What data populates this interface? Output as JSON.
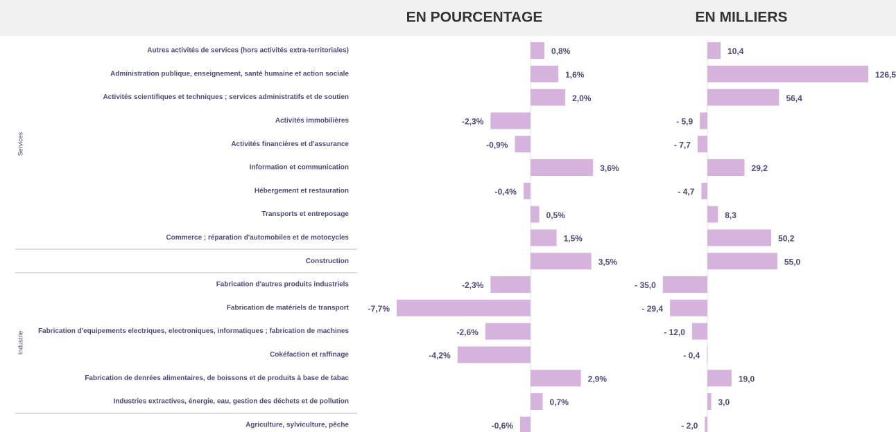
{
  "chart_data": [
    {
      "type": "hbar",
      "title": "EN POURCENTAGE",
      "color": "#d6b3dd",
      "categories": [
        "Autres activités de services (hors activités extra-territoriales)",
        "Administration publique, enseignement, santé humaine et action sociale",
        "Activités scientifiques et techniques ; services administratifs et de soutien",
        "Activités immobilières",
        "Activités financières et d'assurance",
        "Information et communication",
        "Hébergement et restauration",
        "Transports et entreposage",
        "Commerce ; réparation d'automobiles et de motocycles",
        "Construction",
        "Fabrication d'autres produits industriels",
        "Fabrication de matériels de transport",
        "Fabrication d'equipements electriques, electroniques, informatiques ; fabrication de machines",
        "Cokéfaction et raffinage",
        "Fabrication de denrées alimentaires, de boissons et de produits à base de tabac",
        "Industries extractives, énergie, eau, gestion des déchets et de pollution",
        "Agriculture, sylviculture, pêche"
      ],
      "row_groups": [
        "Services",
        "Industrie"
      ],
      "values": [
        0.8,
        1.6,
        2.0,
        -2.3,
        -0.9,
        3.6,
        -0.4,
        0.5,
        1.5,
        3.5,
        -2.3,
        -7.7,
        -2.6,
        -4.2,
        2.9,
        0.7,
        -0.6
      ],
      "value_labels": [
        "0,8%",
        "1,6%",
        "2,0%",
        "-2,3%",
        "-0,9%",
        "3,6%",
        "-0,4%",
        "0,5%",
        "1,5%",
        "3,5%",
        "-2,3%",
        "-7,7%",
        "-2,6%",
        "-4,2%",
        "2,9%",
        "0,7%",
        "-0,6%"
      ]
    },
    {
      "type": "hbar",
      "title": "EN MILLIERS",
      "color": "#d6b3dd",
      "values": [
        10.4,
        126.5,
        56.4,
        -5.9,
        -7.7,
        29.2,
        -4.7,
        8.3,
        50.2,
        55.0,
        -35.0,
        -29.4,
        -12.0,
        -0.4,
        19.0,
        3.0,
        -2.0
      ],
      "value_labels": [
        "10,4",
        "126,5",
        "56,4",
        "- 5,9",
        "- 7,7",
        "29,2",
        "- 4,7",
        "8,3",
        "50,2",
        "55,0",
        "- 35,0",
        "- 29,4",
        "- 12,0",
        "- 0,4",
        "19,0",
        "3,0",
        "- 2,0"
      ]
    }
  ]
}
